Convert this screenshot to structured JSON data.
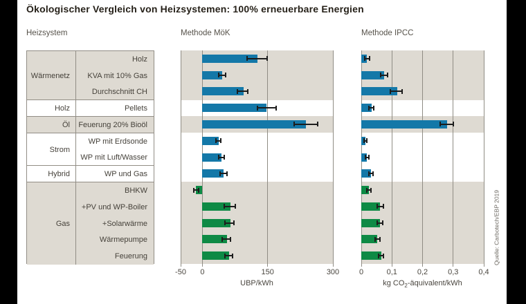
{
  "title": "Ökologischer Vergleich von Heizsystemen: 100% erneuerbare Energien",
  "column_headers": {
    "heizsystem": "Heizsystem"
  },
  "source_note": "Quelle: Carbotech/EBP 2019",
  "colors": {
    "bar_blue": "#1478a8",
    "bar_green": "#0e8a45",
    "stripe_beige": "#dedad2",
    "frame_black": "#000000",
    "grid_gray": "#8f8c84",
    "error_black": "#1c1c1c"
  },
  "groups": [
    {
      "label": "Wärmenetz",
      "shaded": true,
      "bar_color": "bar_blue",
      "rows": [
        "Holz",
        "KVA mit 10% Gas",
        "Durchschnitt CH"
      ]
    },
    {
      "label": "Holz",
      "shaded": false,
      "bar_color": "bar_blue",
      "rows": [
        "Pellets"
      ]
    },
    {
      "label": "Öl",
      "shaded": true,
      "bar_color": "bar_blue",
      "rows": [
        "Feuerung 20% Bioöl"
      ]
    },
    {
      "label": "Strom",
      "shaded": false,
      "bar_color": "bar_blue",
      "rows": [
        "WP mit Erdsonde",
        "WP mit Luft/Wasser"
      ]
    },
    {
      "label": "Hybrid",
      "shaded": false,
      "bar_color": "bar_blue",
      "rows": [
        "WP und Gas"
      ]
    },
    {
      "label": "Gas",
      "shaded": true,
      "bar_color": "bar_green",
      "rows": [
        "BHKW",
        "+PV und WP-Boiler",
        "+Solarwärme",
        "Wärmepumpe",
        "Feuerung"
      ]
    }
  ],
  "chart_data": [
    {
      "type": "bar",
      "orientation": "horizontal",
      "title": "Methode MöK",
      "xlabel": "UBP/kWh",
      "xlim": [
        -50,
        300
      ],
      "xticks": [
        -50,
        0,
        150,
        300
      ],
      "xtick_labels": [
        "-50",
        "0",
        "150",
        "300"
      ],
      "grid": true,
      "categories": [
        "Holz",
        "KVA mit 10% Gas",
        "Durchschnitt CH",
        "Pellets",
        "Feuerung 20% Bioöl",
        "WP mit Erdsonde",
        "WP mit Luft/Wasser",
        "WP und Gas",
        "BHKW",
        "+PV und WP-Boiler",
        "+Solarwärme",
        "Wärmepumpe",
        "Feuerung"
      ],
      "values": [
        126,
        46,
        94,
        147,
        238,
        37,
        44,
        48,
        -15,
        64,
        64,
        56,
        61
      ],
      "error_low": [
        102,
        37,
        80,
        126,
        211,
        31,
        37,
        40,
        -20,
        50,
        52,
        45,
        52
      ],
      "error_high": [
        149,
        54,
        105,
        170,
        265,
        43,
        51,
        56,
        -9,
        75,
        73,
        64,
        70
      ]
    },
    {
      "type": "bar",
      "orientation": "horizontal",
      "title": "Methode IPCC",
      "xlabel": "kg CO₂-äquivalent/kWh",
      "xlabel_parts": {
        "pre": "kg CO",
        "sub": "2",
        "post": "-äquivalent/kWh"
      },
      "xlim": [
        0,
        0.4
      ],
      "xticks": [
        0,
        0.1,
        0.2,
        0.3,
        0.4
      ],
      "xtick_labels": [
        "0",
        "0,1",
        "0,2",
        "0,3",
        "0,4"
      ],
      "grid": true,
      "categories": [
        "Holz",
        "KVA mit 10% Gas",
        "Durchschnitt CH",
        "Pellets",
        "Feuerung 20% Bioöl",
        "WP mit Erdsonde",
        "WP mit Luft/Wasser",
        "WP und Gas",
        "BHKW",
        "+PV und WP-Boiler",
        "+Solarwärme",
        "Wärmepumpe",
        "Feuerung"
      ],
      "values": [
        0.017,
        0.075,
        0.117,
        0.034,
        0.28,
        0.013,
        0.019,
        0.031,
        0.025,
        0.061,
        0.061,
        0.053,
        0.065
      ],
      "error_low": [
        0.012,
        0.063,
        0.096,
        0.025,
        0.258,
        0.009,
        0.013,
        0.024,
        0.018,
        0.053,
        0.053,
        0.046,
        0.057
      ],
      "error_high": [
        0.028,
        0.085,
        0.134,
        0.04,
        0.3,
        0.019,
        0.025,
        0.038,
        0.032,
        0.072,
        0.07,
        0.062,
        0.073
      ]
    }
  ]
}
